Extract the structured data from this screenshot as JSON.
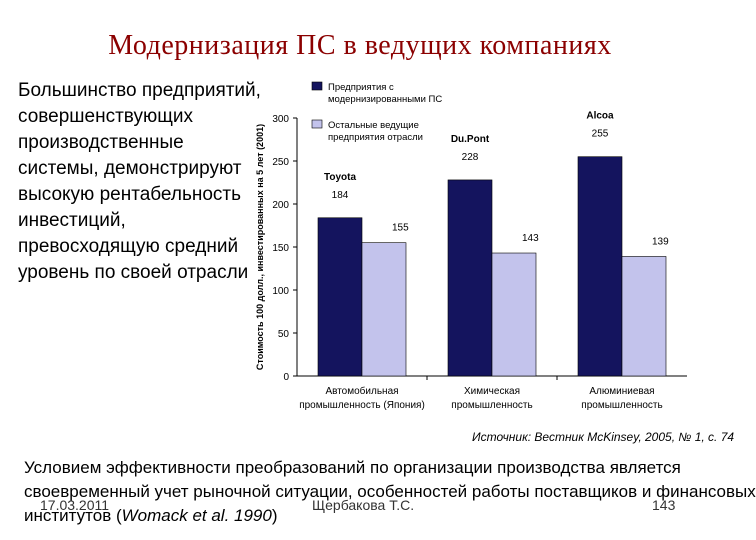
{
  "slide": {
    "title": "Модернизация ПС в ведущих компаниях",
    "left_text_lines": [
      "Большинство предприятий,",
      "совершенствующих",
      "производственные",
      "системы, демонстрируют",
      "высокую рентабельность",
      "инвестиций,",
      "превосходящую средний",
      "уровень по своей отрасли"
    ],
    "bottom_text": {
      "line1": "Условием эффективности преобразований по организации производства является",
      "line2": "своевременный учет рыночной ситуации, особенностей работы поставщиков и финансовых",
      "line3_prefix": "институтов (",
      "line3_italic": "Womack et al. 1990",
      "line3_suffix": ")"
    },
    "footer": {
      "date": "17.03.2011",
      "author": "Щербакова Т.С.",
      "page": "143"
    }
  },
  "chart_data": {
    "type": "bar",
    "ylabel": "Стоимость 100 долл., инвестированных на 5 лет (2001)",
    "ylim": [
      0,
      300
    ],
    "yticks": [
      0,
      50,
      100,
      150,
      200,
      250,
      300
    ],
    "categories": [
      [
        "Автомобильная",
        "промышленность (Япония)"
      ],
      [
        "Химическая",
        "промышленность"
      ],
      [
        "Алюминиевая",
        "промышленность"
      ]
    ],
    "company_labels": [
      "Toyota",
      "Du.Pont",
      "Alcoa"
    ],
    "series": [
      {
        "name": "Предприятия с модернизированными ПС",
        "name_lines": [
          "Предприятия с",
          "модернизированными ПС"
        ],
        "values": [
          184,
          228,
          255
        ],
        "color": "#14145e"
      },
      {
        "name": "Остальные ведущие предприятия отрасли",
        "name_lines": [
          "Остальные ведущие",
          "предприятия отрасли"
        ],
        "values": [
          155,
          143,
          139
        ],
        "color": "#c3c3ec"
      }
    ],
    "source": "Источник: Вестник McKinsey, 2005, № 1, с. 74",
    "grid": false,
    "legend": "top-left"
  }
}
